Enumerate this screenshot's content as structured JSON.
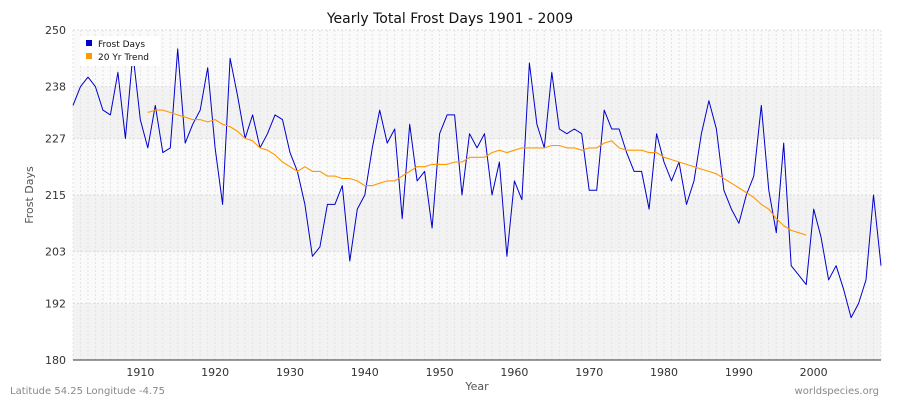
{
  "chart_data": {
    "type": "line",
    "title": "Yearly Total Frost Days 1901 - 2009",
    "xlabel": "Year",
    "ylabel": "Frost Days",
    "xlim": [
      1901,
      2009
    ],
    "ylim": [
      180,
      250
    ],
    "x_ticks": [
      1910,
      1920,
      1930,
      1940,
      1950,
      1960,
      1970,
      1980,
      1990,
      2000
    ],
    "y_ticks": [
      180,
      192,
      203,
      215,
      227,
      238,
      250
    ],
    "grid": true,
    "legend_position": "top-left",
    "series": [
      {
        "name": "Frost Days",
        "color": "#0000cc",
        "x": [
          1901,
          1902,
          1903,
          1904,
          1905,
          1906,
          1907,
          1908,
          1909,
          1910,
          1911,
          1912,
          1913,
          1914,
          1915,
          1916,
          1917,
          1918,
          1919,
          1920,
          1921,
          1922,
          1923,
          1924,
          1925,
          1926,
          1927,
          1928,
          1929,
          1930,
          1931,
          1932,
          1933,
          1934,
          1935,
          1936,
          1937,
          1938,
          1939,
          1940,
          1941,
          1942,
          1943,
          1944,
          1945,
          1946,
          1947,
          1948,
          1949,
          1950,
          1951,
          1952,
          1953,
          1954,
          1955,
          1956,
          1957,
          1958,
          1959,
          1960,
          1961,
          1962,
          1963,
          1964,
          1965,
          1966,
          1967,
          1968,
          1969,
          1970,
          1971,
          1972,
          1973,
          1974,
          1975,
          1976,
          1977,
          1978,
          1979,
          1980,
          1981,
          1982,
          1983,
          1984,
          1985,
          1986,
          1987,
          1988,
          1989,
          1990,
          1991,
          1992,
          1993,
          1994,
          1995,
          1996,
          1997,
          1998,
          1999,
          2000,
          2001,
          2002,
          2003,
          2004,
          2005,
          2006,
          2007,
          2008,
          2009
        ],
        "values": [
          234,
          238,
          240,
          238,
          233,
          232,
          241,
          227,
          245,
          231,
          225,
          234,
          224,
          225,
          246,
          226,
          230,
          233,
          242,
          225,
          213,
          244,
          236,
          227,
          232,
          225,
          228,
          232,
          231,
          224,
          220,
          213,
          202,
          204,
          213,
          213,
          217,
          201,
          212,
          215,
          225,
          233,
          226,
          229,
          210,
          230,
          218,
          220,
          208,
          228,
          232,
          232,
          215,
          228,
          225,
          228,
          215,
          222,
          202,
          218,
          214,
          243,
          230,
          225,
          241,
          229,
          228,
          229,
          228,
          216,
          216,
          233,
          229,
          229,
          224,
          220,
          220,
          212,
          228,
          222,
          218,
          222,
          213,
          218,
          228,
          235,
          229,
          216,
          212,
          209,
          215,
          219,
          234,
          216,
          207,
          226,
          200,
          198,
          196,
          212,
          206,
          197,
          200,
          195,
          189,
          192,
          197,
          215,
          200
        ]
      },
      {
        "name": "20 Yr Trend",
        "color": "#ff9900",
        "x": [
          1911,
          1912,
          1913,
          1914,
          1915,
          1916,
          1917,
          1918,
          1919,
          1920,
          1921,
          1922,
          1923,
          1924,
          1925,
          1926,
          1927,
          1928,
          1929,
          1930,
          1931,
          1932,
          1933,
          1934,
          1935,
          1936,
          1937,
          1938,
          1939,
          1940,
          1941,
          1942,
          1943,
          1944,
          1945,
          1946,
          1947,
          1948,
          1949,
          1950,
          1951,
          1952,
          1953,
          1954,
          1955,
          1956,
          1957,
          1958,
          1959,
          1960,
          1961,
          1962,
          1963,
          1964,
          1965,
          1966,
          1967,
          1968,
          1969,
          1970,
          1971,
          1972,
          1973,
          1974,
          1975,
          1976,
          1977,
          1978,
          1979,
          1980,
          1981,
          1982,
          1983,
          1984,
          1985,
          1986,
          1987,
          1988,
          1989,
          1990,
          1991,
          1992,
          1993,
          1994,
          1995,
          1996,
          1997,
          1998,
          1999
        ],
        "values": [
          232.5,
          233.0,
          233.0,
          232.5,
          232.0,
          231.5,
          231.0,
          231.0,
          230.5,
          231.0,
          230.0,
          229.5,
          228.5,
          227.0,
          226.5,
          225.0,
          224.5,
          223.5,
          222.0,
          221.0,
          220.0,
          221.0,
          220.0,
          220.0,
          219.0,
          219.0,
          218.5,
          218.5,
          218.0,
          217.0,
          217.0,
          217.5,
          218.0,
          218.0,
          219.0,
          220.0,
          221.0,
          221.0,
          221.5,
          221.5,
          221.5,
          222.0,
          222.0,
          223.0,
          223.0,
          223.0,
          224.0,
          224.5,
          224.0,
          224.5,
          225.0,
          225.0,
          225.0,
          225.0,
          225.5,
          225.5,
          225.0,
          225.0,
          224.5,
          225.0,
          225.0,
          226.0,
          226.5,
          225.0,
          224.5,
          224.5,
          224.5,
          224.0,
          224.0,
          223.0,
          222.5,
          222.0,
          221.5,
          221.0,
          220.5,
          220.0,
          219.5,
          218.5,
          217.5,
          216.5,
          215.5,
          214.5,
          213.0,
          212.0,
          210.0,
          208.5,
          207.5,
          207.0,
          206.5
        ]
      }
    ]
  },
  "footer": {
    "location": "Latitude 54.25 Longitude -4.75",
    "source": "worldspecies.org"
  }
}
